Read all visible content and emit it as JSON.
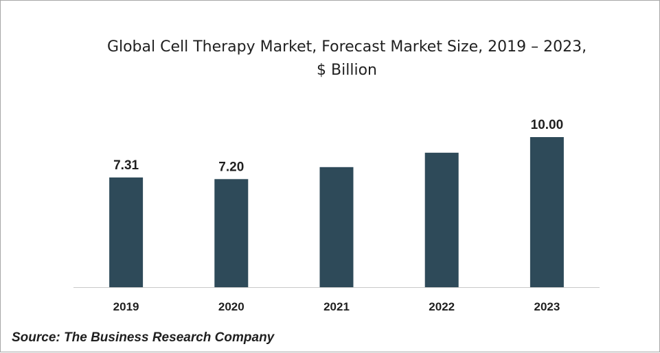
{
  "chart_data": {
    "type": "bar",
    "title_line1": "Global Cell Therapy Market, Forecast Market Size, 2019 – 2023,",
    "title_line2": "$ Billion",
    "categories": [
      "2019",
      "2020",
      "2021",
      "2022",
      "2023"
    ],
    "values": [
      7.31,
      7.2,
      8.0,
      8.96,
      10.0
    ],
    "data_labels": [
      "7.31",
      "7.20",
      "",
      "",
      "10.00"
    ],
    "xlabel": "",
    "ylabel": "",
    "ylim": [
      0,
      11
    ],
    "grid": false,
    "legend": "none",
    "bar_color": "#2e4a59",
    "axis_color": "#c8c8c8"
  },
  "source": "Source: The Business Research Company"
}
